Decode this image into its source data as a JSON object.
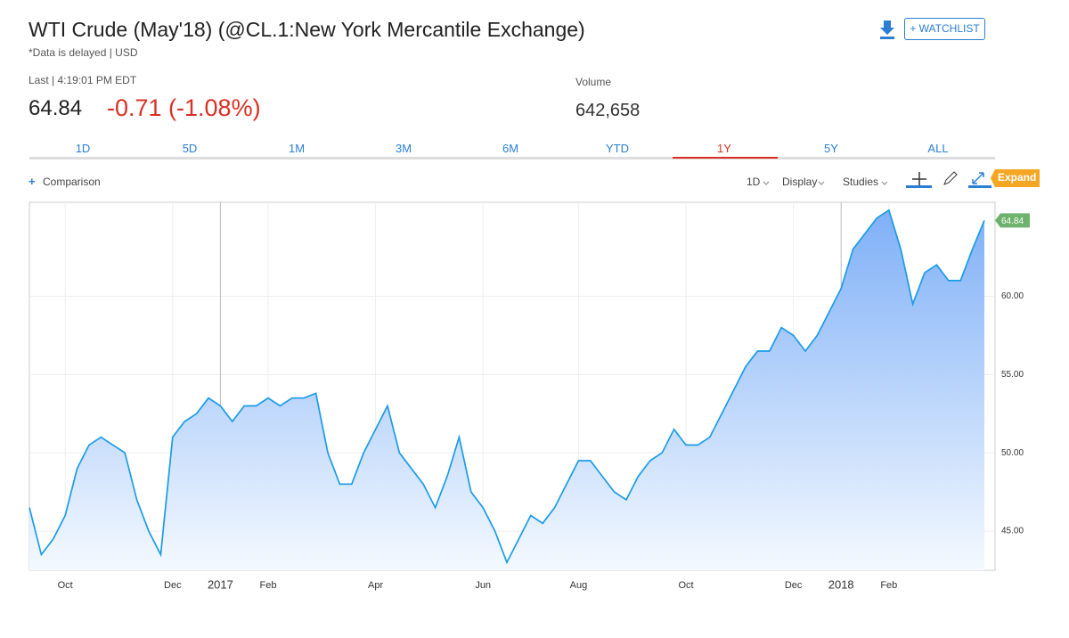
{
  "header": {
    "title": "WTI Crude (May'18) (@CL.1:New York Mercantile Exchange)",
    "subtitle": "*Data is delayed | USD",
    "watchlist": "+ WATCHLIST"
  },
  "quote": {
    "last_label": "Last | 4:19:01 PM EDT",
    "last": "64.84",
    "change": "-0.71 (-1.08%)",
    "volume_label": "Volume",
    "volume": "642,658"
  },
  "tabs": {
    "items": [
      "1D",
      "5D",
      "1M",
      "3M",
      "6M",
      "YTD",
      "1Y",
      "5Y",
      "ALL"
    ],
    "selected": 6
  },
  "toolbar": {
    "comparison": "Comparison",
    "interval": "1D",
    "display": "Display",
    "studies": "Studies",
    "expand": "Expand"
  },
  "chart_data": {
    "type": "area",
    "color": "#1a9be6",
    "categories": [
      null,
      null,
      null,
      "Oct",
      null,
      null,
      null,
      null,
      null,
      null,
      null,
      null,
      "Dec",
      null,
      null,
      null,
      "2017",
      null,
      null,
      null,
      "Feb",
      null,
      null,
      null,
      null,
      null,
      null,
      null,
      null,
      "Apr",
      null,
      null,
      null,
      null,
      null,
      null,
      null,
      null,
      "Jun",
      null,
      null,
      null,
      null,
      null,
      null,
      null,
      "Aug",
      null,
      null,
      null,
      null,
      null,
      null,
      null,
      null,
      "Oct",
      null,
      null,
      null,
      null,
      null,
      null,
      null,
      null,
      "Dec",
      null,
      null,
      null,
      "2018",
      null,
      null,
      null,
      "Feb",
      null,
      null,
      null,
      null,
      null,
      null,
      null,
      null
    ],
    "values": [
      46.5,
      43.5,
      44.5,
      46,
      49,
      50.5,
      51,
      50.5,
      50,
      47,
      45,
      43.5,
      51,
      52,
      52.5,
      53.5,
      53,
      52,
      53,
      53,
      53.5,
      53,
      53.5,
      53.5,
      53.8,
      50,
      48,
      48,
      50,
      51.5,
      53,
      50,
      49,
      48,
      46.5,
      48.5,
      51,
      47.5,
      46.5,
      45,
      43,
      44.5,
      46,
      45.5,
      46.5,
      48,
      49.5,
      49.5,
      48.5,
      47.5,
      47,
      48.5,
      49.5,
      50,
      51.5,
      50.5,
      50.5,
      51,
      52.5,
      54,
      55.5,
      56.5,
      56.5,
      58,
      57.5,
      56.5,
      57.5,
      59,
      60.5,
      63,
      64,
      65,
      65.5,
      63,
      59.5,
      61.5,
      62,
      61,
      61,
      63,
      64.84
    ],
    "ylim": [
      42.5,
      66
    ],
    "yticks": [
      {
        "value": 45,
        "label": "45.00"
      },
      {
        "value": 50,
        "label": "50.00"
      },
      {
        "value": 55,
        "label": "55.00"
      },
      {
        "value": 60,
        "label": "60.00"
      }
    ],
    "grid": true
  }
}
